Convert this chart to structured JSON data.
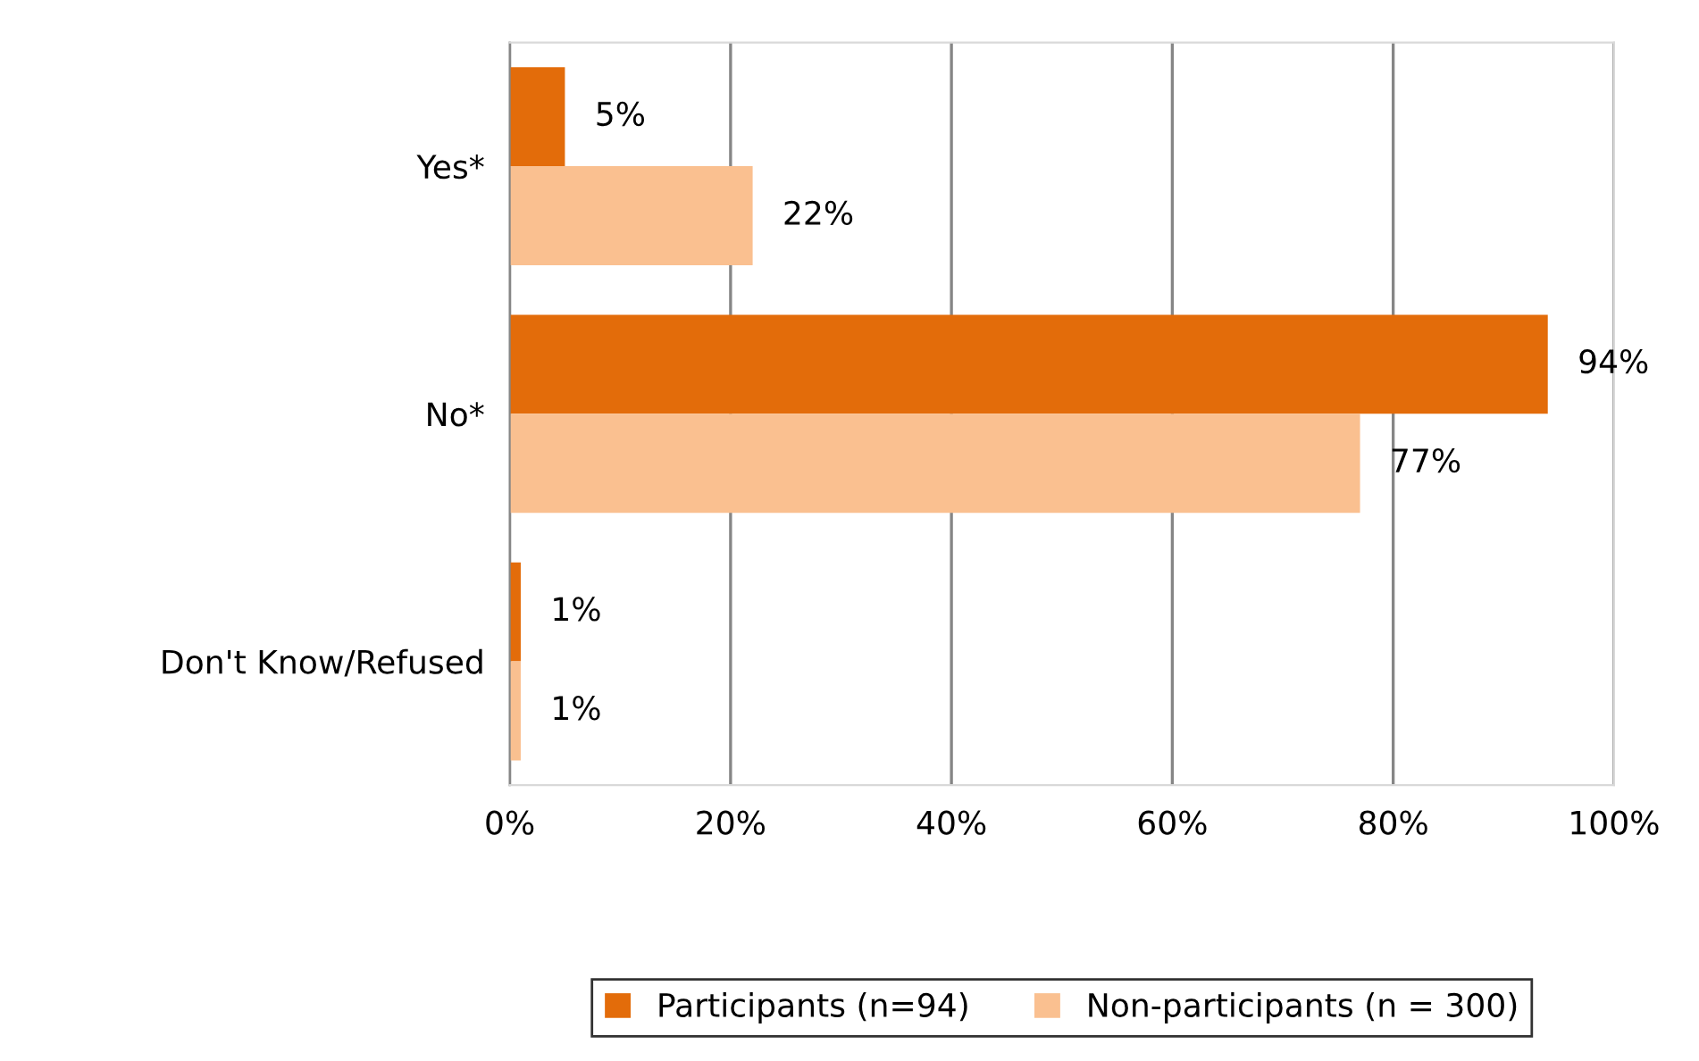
{
  "chart_data": {
    "type": "bar",
    "orientation": "horizontal",
    "categories": [
      "Yes*",
      "No*",
      "Don't Know/Refused"
    ],
    "series": [
      {
        "name": "Participants (n=94)",
        "color": "#e36c0a",
        "values": [
          5,
          94,
          1
        ],
        "value_labels": [
          "5%",
          "94%",
          "1%"
        ]
      },
      {
        "name": "Non-participants (n = 300)",
        "color": "#fac090",
        "values": [
          22,
          77,
          1
        ],
        "value_labels": [
          "22%",
          "77%",
          "1%"
        ]
      }
    ],
    "xlim": [
      0,
      100
    ],
    "xticks": [
      {
        "value": 0,
        "label": "0%"
      },
      {
        "value": 20,
        "label": "20%"
      },
      {
        "value": 40,
        "label": "40%"
      },
      {
        "value": 60,
        "label": "60%"
      },
      {
        "value": 80,
        "label": "80%"
      },
      {
        "value": 100,
        "label": "100%"
      }
    ],
    "grid": "x",
    "legend": "bottom"
  }
}
